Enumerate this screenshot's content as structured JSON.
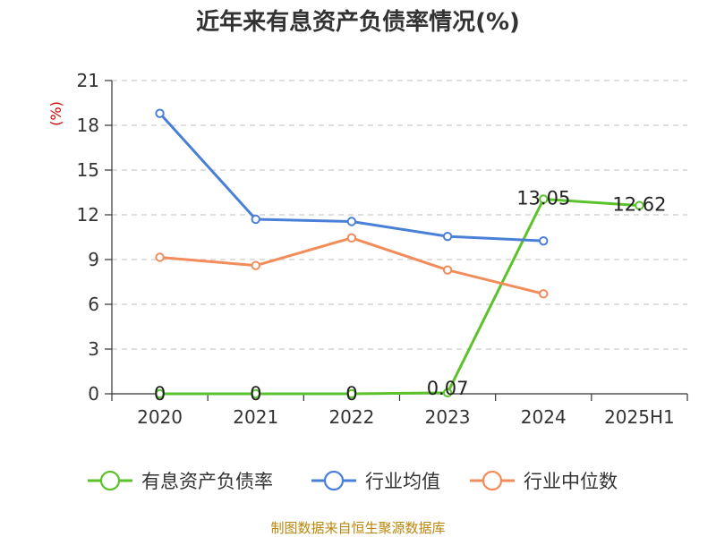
{
  "chart_data": {
    "type": "line",
    "title": "近年来有息资产负债率情况(%)",
    "y_unit": "(%)",
    "categories": [
      "2020",
      "2021",
      "2022",
      "2023",
      "2024",
      "2025H1"
    ],
    "y_ticks": [
      "0",
      "3",
      "6",
      "9",
      "12",
      "15",
      "18",
      "21"
    ],
    "ylim": [
      0,
      21
    ],
    "grid": true,
    "legend_position": "bottom",
    "series": [
      {
        "name": "有息资产负债率",
        "color": "#5cc22b",
        "values": [
          0,
          0,
          0,
          0.07,
          13.05,
          12.62
        ],
        "data_labels": [
          "0",
          "0",
          "0",
          "0.07",
          "13.05",
          "12.62"
        ]
      },
      {
        "name": "行业均值",
        "color": "#4a7fd8",
        "values": [
          18.8,
          11.7,
          11.55,
          10.55,
          10.25,
          null
        ],
        "data_labels": []
      },
      {
        "name": "行业中位数",
        "color": "#f28c5a",
        "values": [
          9.15,
          8.6,
          10.45,
          8.3,
          6.7,
          null
        ],
        "data_labels": []
      }
    ]
  },
  "source_text": "制图数据来自恒生聚源数据库"
}
